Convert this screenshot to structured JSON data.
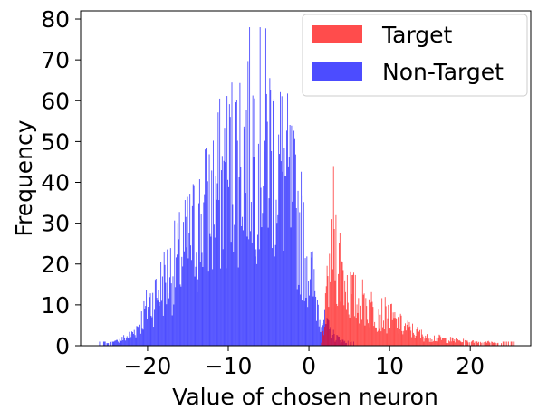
{
  "chart_data": {
    "type": "histogram",
    "xlabel": "Value of chosen neuron",
    "ylabel": "Frequency",
    "xlim": [
      -28.3,
      27.5
    ],
    "ylim": [
      0,
      82
    ],
    "x_ticks": [
      -20,
      -10,
      0,
      10,
      20
    ],
    "x_tick_labels": [
      "−20",
      "−10",
      "0",
      "10",
      "20"
    ],
    "y_ticks": [
      0,
      10,
      20,
      30,
      40,
      50,
      60,
      70,
      80
    ],
    "y_tick_labels": [
      "0",
      "10",
      "20",
      "30",
      "40",
      "50",
      "60",
      "70",
      "80"
    ],
    "grid": false,
    "legend_position": "top-right",
    "bin_width": 0.1,
    "series": [
      {
        "name": "Target",
        "color": "#ff0000",
        "alpha": 0.7,
        "summary": {
          "approx_range": [
            1.5,
            25.5
          ],
          "peak_x": 3.0,
          "peak_count": 44
        },
        "envelope": {
          "x": [
            1.5,
            2.0,
            2.5,
            3.0,
            3.5,
            4.0,
            4.5,
            5.0,
            6.0,
            7.0,
            8.0,
            9.0,
            10.0,
            11.0,
            12.0,
            13.0,
            14.0,
            15.0,
            16.0,
            18.0,
            20.0,
            22.0,
            25.5
          ],
          "y": [
            0,
            8,
            20,
            35,
            25,
            22,
            18,
            15,
            12,
            12,
            10,
            9,
            8,
            6,
            5,
            4,
            3,
            2.5,
            2,
            1.5,
            1,
            1,
            0
          ]
        }
      },
      {
        "name": "Non-Target",
        "color": "#0000ff",
        "alpha": 0.7,
        "summary": {
          "approx_range": [
            -26,
            6
          ],
          "peak_x": -6.5,
          "peak_count": 78
        },
        "envelope": {
          "x": [
            -26,
            -24,
            -23,
            -22,
            -21,
            -20,
            -19,
            -18,
            -17,
            -16,
            -15,
            -14,
            -13,
            -12,
            -11,
            -10,
            -9,
            -8,
            -7,
            -6,
            -5,
            -4,
            -3,
            -2,
            -1,
            0,
            1,
            2,
            3,
            4,
            5,
            6
          ],
          "y": [
            0,
            1,
            2,
            3,
            6,
            11,
            14,
            18,
            21,
            24,
            28,
            32,
            36,
            40,
            44,
            48,
            52,
            55,
            57,
            57,
            56,
            52,
            47,
            40,
            32,
            22,
            12,
            6,
            3,
            1.5,
            0.8,
            0
          ]
        }
      }
    ]
  }
}
